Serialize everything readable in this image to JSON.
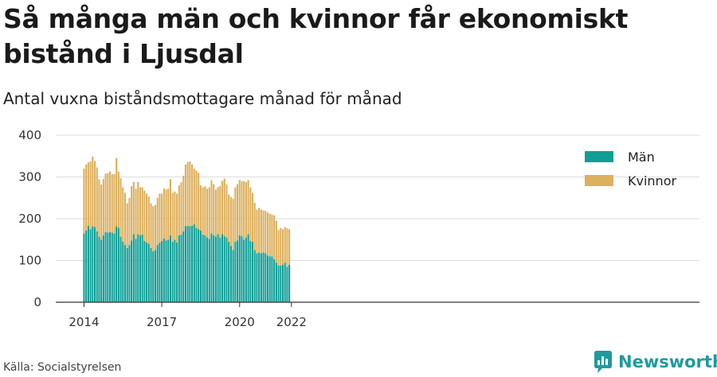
{
  "title": "Så många män och kvinnor får ekonomiskt bistånd i Ljusdal",
  "subtitle": "Antal vuxna biståndsmottagare månad för månad",
  "source": "Källa: Socialstyrelsen",
  "brand": {
    "name": "Newsworthy",
    "icon": "newsworthy-logo-icon"
  },
  "colors": {
    "men": "#0f9e96",
    "women": "#ddb05e",
    "grid": "#dddddd",
    "axis": "#333333"
  },
  "chart_data": {
    "type": "bar",
    "stacked": true,
    "start": "2014-01",
    "x_ticks": [
      "2014",
      "2017",
      "2020",
      "2022"
    ],
    "y_ticks": [
      0,
      100,
      200,
      300,
      400
    ],
    "ylim": [
      0,
      400
    ],
    "grid": true,
    "legend": "top-right",
    "series": [
      {
        "name": "Män",
        "key": "men",
        "values": [
          165,
          172,
          183,
          175,
          182,
          180,
          170,
          157,
          150,
          160,
          168,
          167,
          168,
          167,
          165,
          182,
          178,
          157,
          145,
          137,
          130,
          137,
          148,
          163,
          152,
          163,
          160,
          162,
          147,
          143,
          140,
          130,
          122,
          125,
          137,
          142,
          147,
          153,
          148,
          150,
          160,
          145,
          150,
          143,
          160,
          162,
          170,
          182,
          183,
          182,
          183,
          187,
          178,
          175,
          172,
          162,
          160,
          155,
          152,
          165,
          160,
          157,
          163,
          155,
          163,
          158,
          155,
          145,
          135,
          125,
          145,
          148,
          160,
          158,
          150,
          155,
          163,
          147,
          145,
          125,
          117,
          119,
          117,
          119,
          117,
          112,
          110,
          110,
          103,
          95,
          88,
          88,
          90,
          95,
          85,
          90
        ]
      },
      {
        "name": "Kvinnor",
        "key": "women",
        "values": [
          155,
          158,
          152,
          162,
          167,
          158,
          153,
          137,
          132,
          135,
          140,
          142,
          145,
          140,
          142,
          163,
          135,
          140,
          130,
          125,
          107,
          113,
          130,
          125,
          120,
          125,
          115,
          113,
          120,
          117,
          113,
          107,
          108,
          108,
          113,
          118,
          113,
          120,
          122,
          122,
          135,
          117,
          115,
          117,
          120,
          125,
          133,
          148,
          153,
          155,
          147,
          133,
          137,
          135,
          108,
          113,
          118,
          117,
          123,
          127,
          123,
          113,
          113,
          123,
          128,
          138,
          127,
          113,
          117,
          123,
          130,
          135,
          133,
          132,
          140,
          133,
          130,
          128,
          117,
          113,
          105,
          107,
          105,
          101,
          102,
          103,
          102,
          100,
          105,
          100,
          85,
          90,
          85,
          85,
          92,
          85
        ]
      }
    ]
  }
}
